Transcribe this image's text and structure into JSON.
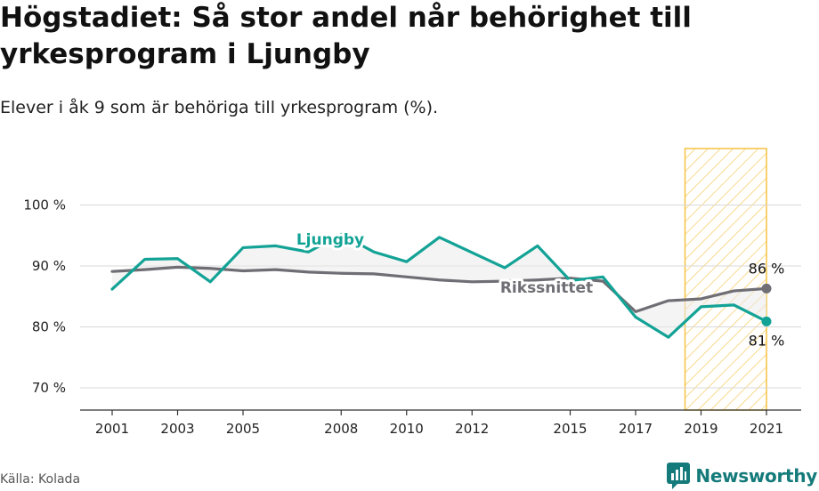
{
  "title": "Högstadiet: Så stor andel når behörighet till yrkesprogram i Ljungby",
  "subtitle": "Elever i åk 9 som är behöriga till yrkesprogram (%).",
  "source": "Källa: Kolada",
  "brand": "Newsworthy",
  "colors": {
    "ljungby": "#13a396",
    "riket": "#6e6e74",
    "highlight": "#f5c242"
  },
  "chart_data": {
    "type": "line",
    "x": [
      2001,
      2002,
      2003,
      2004,
      2005,
      2006,
      2007,
      2008,
      2009,
      2010,
      2011,
      2012,
      2013,
      2014,
      2015,
      2016,
      2017,
      2018,
      2019,
      2020,
      2021
    ],
    "x_ticks": [
      "2001",
      "2003",
      "2005",
      "2008",
      "2010",
      "2012",
      "2015",
      "2017",
      "2019",
      "2021"
    ],
    "y_ticks": [
      "70 %",
      "80 %",
      "90 %",
      "100 %"
    ],
    "ylim": [
      65,
      110
    ],
    "series": [
      {
        "name": "Ljungby",
        "values": [
          86.2,
          91.1,
          91.2,
          87.4,
          93.0,
          93.3,
          92.3,
          95.2,
          92.3,
          90.7,
          94.7,
          92.2,
          89.7,
          93.3,
          87.6,
          88.2,
          81.6,
          78.3,
          83.3,
          83.6,
          80.9
        ]
      },
      {
        "name": "Rikssnittet",
        "values": [
          89.1,
          89.4,
          89.8,
          89.6,
          89.2,
          89.4,
          89.0,
          88.8,
          88.7,
          88.2,
          87.7,
          87.4,
          87.5,
          87.7,
          88.0,
          87.5,
          82.5,
          84.3,
          84.6,
          85.9,
          86.3
        ]
      }
    ],
    "highlight_range": [
      2019,
      2021
    ],
    "end_labels": {
      "ljungby": "81 %",
      "riket": "86 %"
    }
  }
}
